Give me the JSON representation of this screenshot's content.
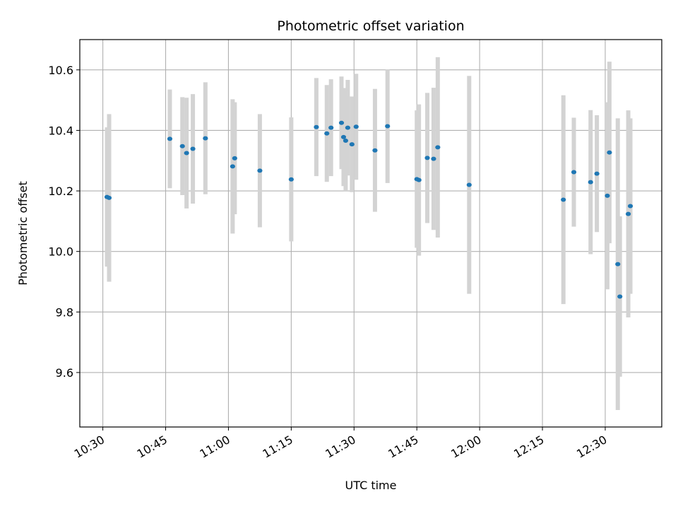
{
  "chart_data": {
    "type": "scatter",
    "title": "Photometric offset variation",
    "xlabel": "UTC time",
    "ylabel": "Photometric offset",
    "x_ticks": [
      "10:30",
      "10:45",
      "11:00",
      "11:15",
      "11:30",
      "11:45",
      "12:00",
      "12:15",
      "12:30"
    ],
    "y_ticks": [
      "9.6",
      "9.8",
      "10.0",
      "10.2",
      "10.4",
      "10.6"
    ],
    "xlim": [
      "10:24.5",
      "12:43.5"
    ],
    "ylim": [
      9.42,
      10.7
    ],
    "grid": true,
    "colors": {
      "point": "#1f77b4",
      "errorbar": "#d3d3d3",
      "grid": "#b0b0b0"
    },
    "series": [
      {
        "points": [
          {
            "t": "10:31:00",
            "y": 10.18,
            "err": 0.23
          },
          {
            "t": "10:31:30",
            "y": 10.177,
            "err": 0.277
          },
          {
            "t": "10:46:00",
            "y": 10.372,
            "err": 0.163
          },
          {
            "t": "10:49:00",
            "y": 10.348,
            "err": 0.162
          },
          {
            "t": "10:50:00",
            "y": 10.325,
            "err": 0.183
          },
          {
            "t": "10:51:30",
            "y": 10.339,
            "err": 0.181
          },
          {
            "t": "10:54:30",
            "y": 10.374,
            "err": 0.185
          },
          {
            "t": "11:01:00",
            "y": 10.281,
            "err": 0.222
          },
          {
            "t": "11:01:30",
            "y": 10.308,
            "err": 0.185
          },
          {
            "t": "11:07:30",
            "y": 10.267,
            "err": 0.187
          },
          {
            "t": "11:15:00",
            "y": 10.238,
            "err": 0.205
          },
          {
            "t": "11:21:00",
            "y": 10.411,
            "err": 0.162
          },
          {
            "t": "11:23:30",
            "y": 10.39,
            "err": 0.16
          },
          {
            "t": "11:24:30",
            "y": 10.409,
            "err": 0.16
          },
          {
            "t": "11:27:00",
            "y": 10.425,
            "err": 0.153
          },
          {
            "t": "11:27:30",
            "y": 10.378,
            "err": 0.162
          },
          {
            "t": "11:28:00",
            "y": 10.366,
            "err": 0.166
          },
          {
            "t": "11:28:30",
            "y": 10.409,
            "err": 0.158
          },
          {
            "t": "11:29:30",
            "y": 10.354,
            "err": 0.158
          },
          {
            "t": "11:30:30",
            "y": 10.412,
            "err": 0.175
          },
          {
            "t": "11:35:00",
            "y": 10.334,
            "err": 0.203
          },
          {
            "t": "11:38:00",
            "y": 10.414,
            "err": 0.188
          },
          {
            "t": "11:45:00",
            "y": 10.239,
            "err": 0.227
          },
          {
            "t": "11:45:30",
            "y": 10.236,
            "err": 0.25
          },
          {
            "t": "11:47:30",
            "y": 10.309,
            "err": 0.215
          },
          {
            "t": "11:49:00",
            "y": 10.306,
            "err": 0.235
          },
          {
            "t": "11:50:00",
            "y": 10.344,
            "err": 0.298
          },
          {
            "t": "11:57:30",
            "y": 10.22,
            "err": 0.36
          },
          {
            "t": "12:20:00",
            "y": 10.171,
            "err": 0.345
          },
          {
            "t": "12:22:30",
            "y": 10.262,
            "err": 0.18
          },
          {
            "t": "12:26:30",
            "y": 10.229,
            "err": 0.238
          },
          {
            "t": "12:28:00",
            "y": 10.257,
            "err": 0.193
          },
          {
            "t": "12:30:30",
            "y": 10.184,
            "err": 0.309
          },
          {
            "t": "12:31:00",
            "y": 10.327,
            "err": 0.3
          },
          {
            "t": "12:33:00",
            "y": 9.958,
            "err": 0.482
          },
          {
            "t": "12:33:30",
            "y": 9.851,
            "err": 0.265
          },
          {
            "t": "12:35:30",
            "y": 10.124,
            "err": 0.342
          },
          {
            "t": "12:36:00",
            "y": 10.15,
            "err": 0.29
          }
        ]
      }
    ]
  }
}
